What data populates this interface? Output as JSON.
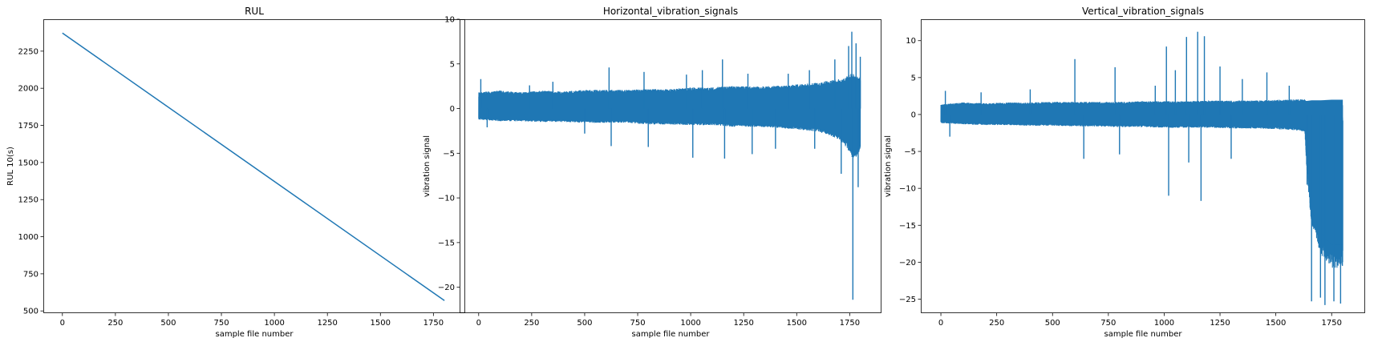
{
  "chart_data": [
    {
      "type": "line",
      "title": "RUL",
      "xlabel": "sample file number",
      "ylabel": "RUL 10(s)",
      "xlim": [
        -90,
        1900
      ],
      "ylim": [
        485,
        2465
      ],
      "xticks": [
        0,
        250,
        500,
        750,
        1000,
        1250,
        1500,
        1750
      ],
      "yticks": [
        500,
        750,
        1000,
        1250,
        1500,
        1750,
        2000,
        2250
      ],
      "ytick_labels": [
        "500",
        "750",
        "1000",
        "1250",
        "1500",
        "1750",
        "2000",
        "2250"
      ],
      "color": "#1f77b4",
      "grid": false,
      "series": [
        {
          "x": [
            0,
            1802
          ],
          "y": [
            2372,
            570
          ]
        }
      ]
    },
    {
      "type": "line",
      "title": "Horizontal_vibration_signals",
      "xlabel": "sample file number",
      "ylabel": "vibration signal",
      "xlim": [
        -90,
        1900
      ],
      "ylim": [
        -22.9,
        10
      ],
      "xticks": [
        0,
        250,
        500,
        750,
        1000,
        1250,
        1500,
        1750
      ],
      "yticks": [
        -20,
        -15,
        -10,
        -5,
        0,
        5,
        10
      ],
      "ytick_labels": [
        "−20",
        "−15",
        "−10",
        "−5",
        "0",
        "5",
        "10"
      ],
      "color": "#1f77b4",
      "grid": false,
      "series": [
        {
          "x": [
            0,
            100,
            200,
            300,
            400,
            500,
            600,
            700,
            800,
            900,
            1000,
            1100,
            1200,
            1300,
            1400,
            1500,
            1600,
            1650,
            1700,
            1720,
            1750,
            1760,
            1780,
            1800
          ],
          "envelope_upper": [
            2.0,
            2.2,
            2.0,
            2.2,
            2.1,
            2.3,
            2.3,
            2.3,
            2.4,
            2.4,
            2.6,
            2.6,
            2.8,
            2.7,
            2.8,
            3.0,
            3.2,
            3.5,
            3.7,
            3.8,
            4.3,
            4.5,
            4.2,
            3.9
          ],
          "envelope_lower": [
            -1.4,
            -1.6,
            -1.6,
            -1.7,
            -1.7,
            -1.8,
            -1.8,
            -1.8,
            -2.0,
            -2.0,
            -2.1,
            -2.1,
            -2.3,
            -2.3,
            -2.4,
            -2.6,
            -2.9,
            -3.3,
            -3.9,
            -4.3,
            -5.4,
            -6.0,
            -6.0,
            -5.0
          ],
          "spikes": [
            [
              10,
              3.3
            ],
            [
              40,
              -2.1
            ],
            [
              240,
              2.6
            ],
            [
              350,
              3.0
            ],
            [
              500,
              -2.8
            ],
            [
              615,
              4.6
            ],
            [
              625,
              -4.2
            ],
            [
              780,
              4.1
            ],
            [
              800,
              -4.3
            ],
            [
              980,
              3.8
            ],
            [
              1010,
              -5.5
            ],
            [
              1055,
              4.3
            ],
            [
              1150,
              5.5
            ],
            [
              1160,
              -5.6
            ],
            [
              1270,
              3.9
            ],
            [
              1290,
              -5.1
            ],
            [
              1400,
              -4.5
            ],
            [
              1460,
              3.9
            ],
            [
              1560,
              4.3
            ],
            [
              1585,
              -4.5
            ],
            [
              1680,
              5.5
            ],
            [
              1710,
              -7.3
            ],
            [
              1745,
              7.0
            ],
            [
              1760,
              8.6
            ],
            [
              1765,
              -21.4
            ],
            [
              1780,
              7.3
            ],
            [
              1790,
              -8.8
            ],
            [
              1800,
              5.8
            ]
          ]
        }
      ]
    },
    {
      "type": "line",
      "title": "Vertical_vibration_signals",
      "xlabel": "sample file number",
      "ylabel": "vibration signal",
      "xlim": [
        -90,
        1900
      ],
      "ylim": [
        -26.9,
        12.9
      ],
      "xticks": [
        0,
        250,
        500,
        750,
        1000,
        1250,
        1500,
        1750
      ],
      "yticks": [
        -25,
        -20,
        -15,
        -10,
        -5,
        0,
        5,
        10
      ],
      "ytick_labels": [
        "−25",
        "−20",
        "−15",
        "−10",
        "−5",
        "0",
        "5",
        "10"
      ],
      "color": "#1f77b4",
      "grid": false,
      "series": [
        {
          "x": [
            0,
            100,
            200,
            300,
            400,
            500,
            600,
            700,
            800,
            900,
            1000,
            1100,
            1200,
            1300,
            1400,
            1500,
            1600,
            1630,
            1640,
            1660,
            1700,
            1750,
            1800
          ],
          "envelope_upper": [
            1.5,
            1.8,
            1.7,
            1.8,
            1.8,
            1.9,
            1.9,
            1.9,
            1.9,
            2.0,
            2.0,
            2.0,
            2.1,
            2.1,
            2.1,
            2.2,
            2.3,
            2.3,
            2.3,
            2.4,
            2.4,
            2.5,
            2.5
          ],
          "envelope_lower": [
            -1.3,
            -1.5,
            -1.6,
            -1.6,
            -1.7,
            -1.7,
            -1.8,
            -1.8,
            -1.9,
            -1.9,
            -2.0,
            -2.0,
            -2.0,
            -2.1,
            -2.1,
            -2.2,
            -2.4,
            -2.6,
            -9.0,
            -16.0,
            -20.0,
            -22.0,
            -22.0
          ],
          "spikes": [
            [
              20,
              3.2
            ],
            [
              40,
              -3.0
            ],
            [
              180,
              3.0
            ],
            [
              400,
              3.4
            ],
            [
              600,
              7.5
            ],
            [
              640,
              -6.0
            ],
            [
              780,
              6.4
            ],
            [
              800,
              -5.4
            ],
            [
              960,
              3.9
            ],
            [
              1010,
              9.2
            ],
            [
              1020,
              -11.0
            ],
            [
              1050,
              6.0
            ],
            [
              1100,
              10.5
            ],
            [
              1110,
              -6.5
            ],
            [
              1150,
              11.2
            ],
            [
              1165,
              -11.7
            ],
            [
              1180,
              10.6
            ],
            [
              1250,
              6.5
            ],
            [
              1300,
              -6.0
            ],
            [
              1350,
              4.8
            ],
            [
              1460,
              5.7
            ],
            [
              1560,
              3.9
            ],
            [
              1640,
              -9.5
            ],
            [
              1660,
              -25.3
            ],
            [
              1700,
              -24.8
            ],
            [
              1720,
              -25.8
            ],
            [
              1760,
              -25.3
            ],
            [
              1790,
              -25.6
            ]
          ]
        }
      ]
    }
  ]
}
